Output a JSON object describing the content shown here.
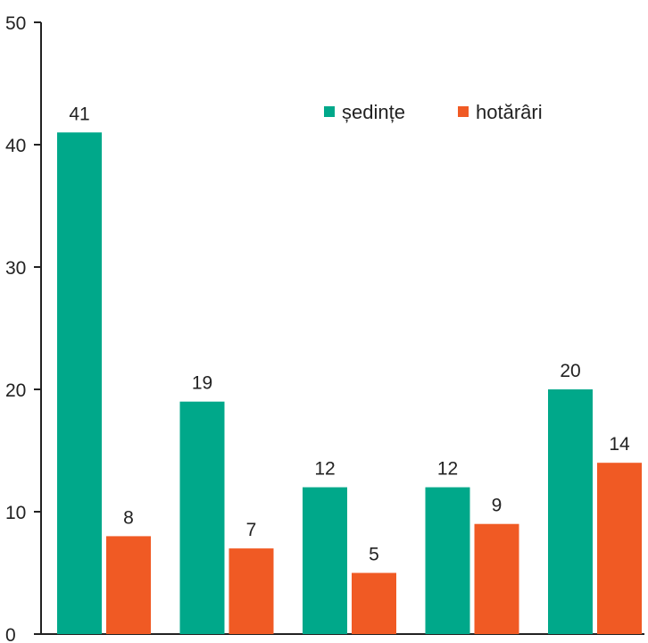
{
  "chart_data": {
    "type": "bar",
    "categories": [
      "",
      "",
      "",
      "",
      ""
    ],
    "series": [
      {
        "name": "ședințe",
        "color": "#00a88a",
        "values": [
          41,
          19,
          12,
          12,
          20
        ]
      },
      {
        "name": "hotărâri",
        "color": "#f05a24",
        "values": [
          8,
          7,
          5,
          9,
          14
        ]
      }
    ],
    "ylim": [
      0,
      50
    ],
    "yticks": [
      0,
      10,
      20,
      30,
      40,
      50
    ],
    "grid": false,
    "legend": "top-right",
    "data_labels": true
  }
}
